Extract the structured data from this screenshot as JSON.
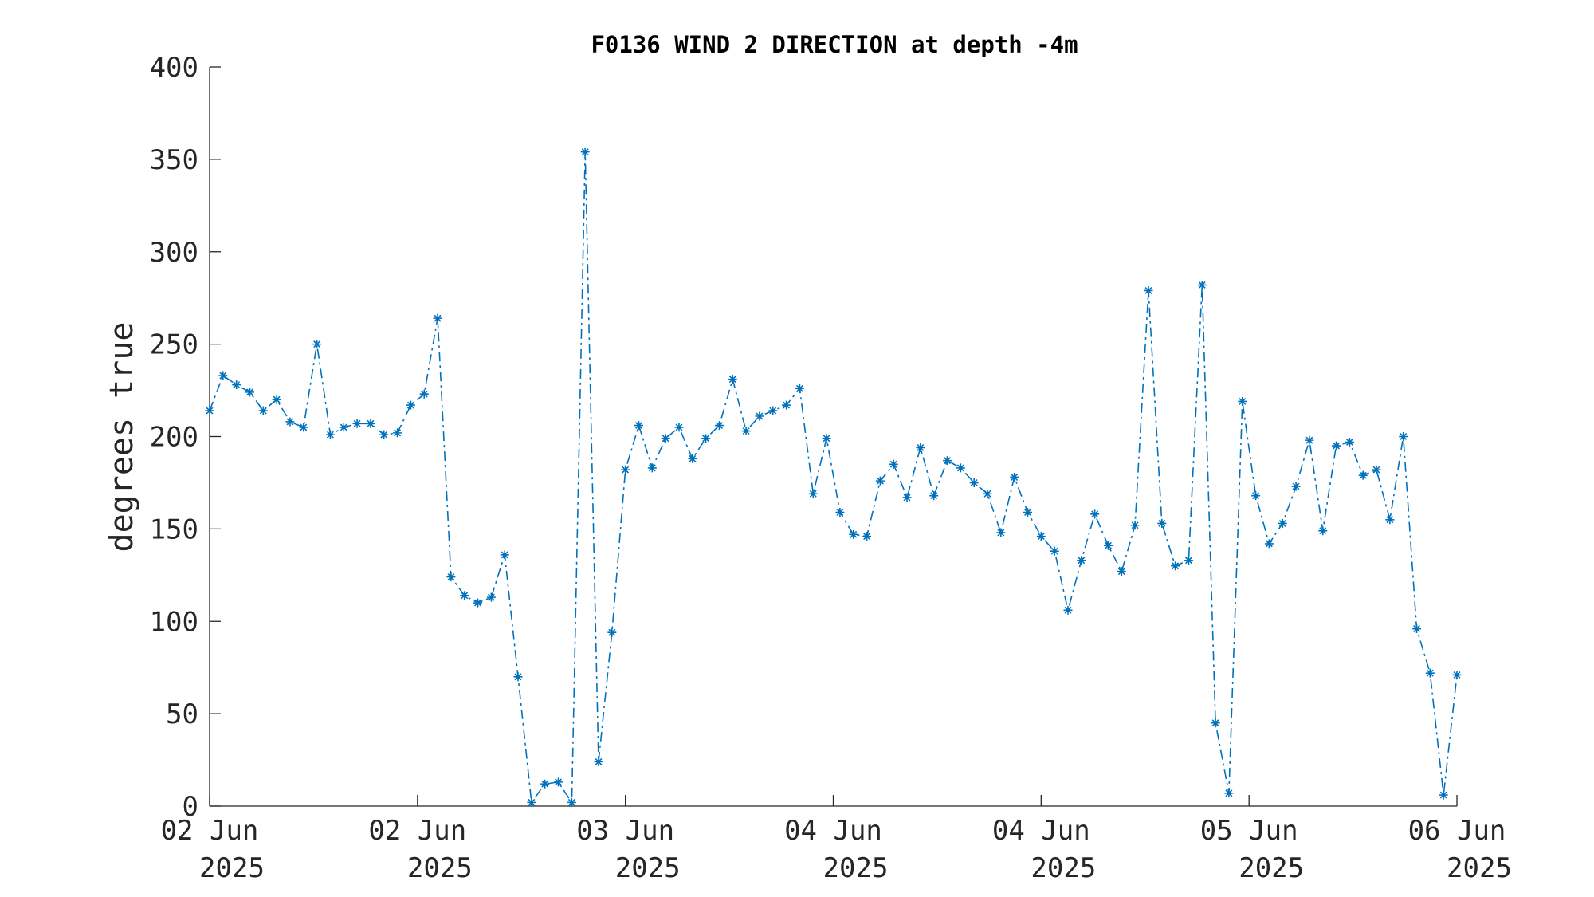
{
  "chart_data": {
    "type": "line",
    "title": "F0136 WIND 2 DIRECTION at depth -4m",
    "xlabel": "",
    "ylabel": "degrees true",
    "ylim": [
      0,
      400
    ],
    "yticks": [
      "0",
      "50",
      "100",
      "150",
      "200",
      "250",
      "300",
      "350",
      "400"
    ],
    "xticks": [
      {
        "line1": "02 Jun",
        "line2": "2025"
      },
      {
        "line1": "02 Jun",
        "line2": "2025"
      },
      {
        "line1": "03 Jun",
        "line2": "2025"
      },
      {
        "line1": "04 Jun",
        "line2": "2025"
      },
      {
        "line1": "04 Jun",
        "line2": "2025"
      },
      {
        "line1": "05 Jun",
        "line2": "2025"
      },
      {
        "line1": "06 Jun",
        "line2": "2025"
      }
    ],
    "grid": false,
    "legend": "none",
    "marker": "asterisk",
    "line_style": "dash-dot",
    "color": "#0072bd",
    "series": [
      {
        "values": [
          214,
          233,
          228,
          224,
          214,
          220,
          208,
          205,
          250,
          201,
          205,
          207,
          207,
          201,
          202,
          217,
          223,
          264,
          124,
          114,
          110,
          113,
          136,
          70,
          2,
          12,
          13,
          2,
          354,
          24,
          94,
          182,
          206,
          183,
          199,
          205,
          188,
          199,
          206,
          231,
          203,
          211,
          214,
          217,
          226,
          169,
          199,
          159,
          147,
          146,
          176,
          185,
          167,
          194,
          168,
          187,
          183,
          175,
          169,
          148,
          178,
          159,
          146,
          138,
          106,
          133,
          158,
          141,
          127,
          152,
          279,
          153,
          130,
          133,
          282,
          45,
          7,
          219,
          168,
          142,
          153,
          173,
          198,
          149,
          195,
          197,
          179,
          182,
          155,
          200,
          96,
          72,
          6,
          71
        ]
      }
    ]
  }
}
